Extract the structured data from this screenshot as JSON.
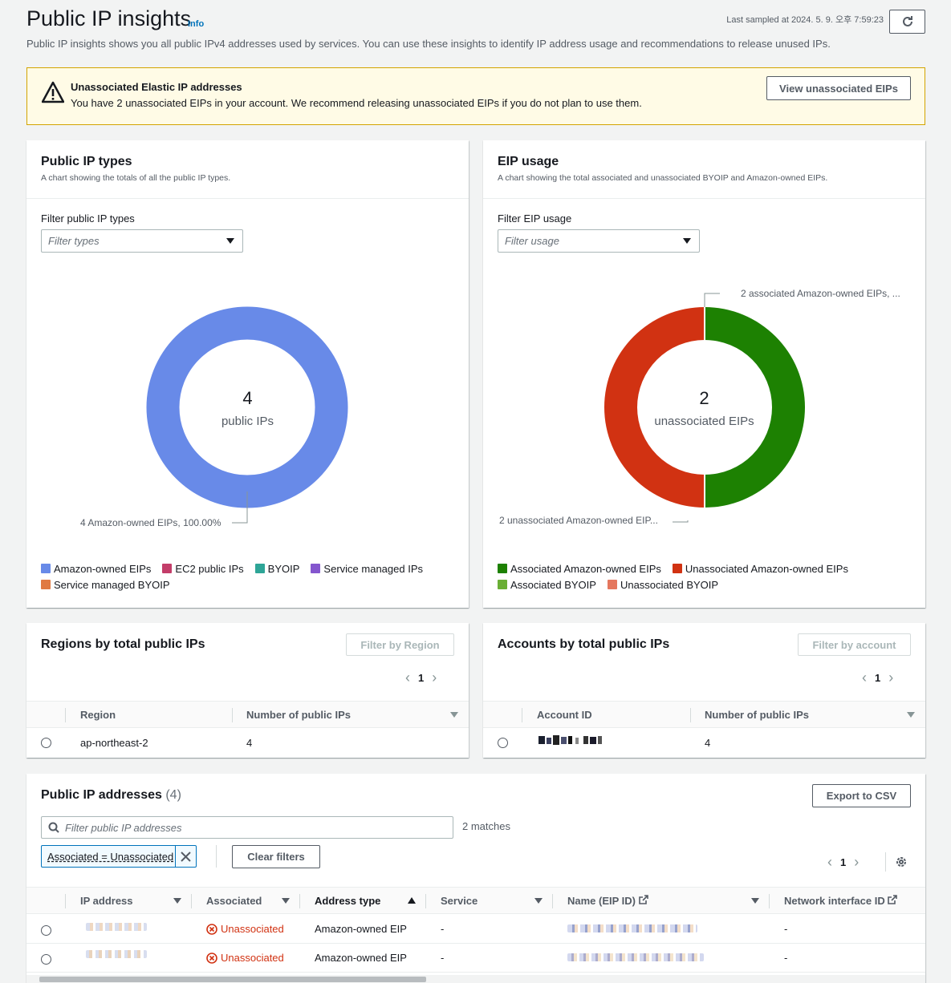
{
  "header": {
    "title": "Public IP insights",
    "info": "Info",
    "last_sampled": "Last sampled at 2024. 5. 9. 오후 7:59:23",
    "description": "Public IP insights shows you all public IPv4 addresses used by services. You can use these insights to identify IP address usage and recommendations to release unused IPs."
  },
  "alert": {
    "title": "Unassociated Elastic IP addresses",
    "text": "You have 2 unassociated EIPs in your account. We recommend releasing unassociated EIPs if you do not plan to use them.",
    "button": "View unassociated EIPs"
  },
  "ip_types": {
    "title": "Public IP types",
    "subtitle": "A chart showing the totals of all the public IP types.",
    "filter_label": "Filter public IP types",
    "filter_placeholder": "Filter types",
    "center_value": "4",
    "center_label": "public IPs",
    "slice_label": "4 Amazon-owned EIPs, 100.00%",
    "legend": [
      {
        "label": "Amazon-owned EIPs",
        "color": "#688ae8"
      },
      {
        "label": "EC2 public IPs",
        "color": "#c33d69"
      },
      {
        "label": "BYOIP",
        "color": "#2ea597"
      },
      {
        "label": "Service managed IPs",
        "color": "#8456ce"
      },
      {
        "label": "Service managed BYOIP",
        "color": "#e07941"
      }
    ]
  },
  "eip_usage": {
    "title": "EIP usage",
    "subtitle": "A chart showing the total associated and unassociated BYOIP and Amazon-owned EIPs.",
    "filter_label": "Filter EIP usage",
    "filter_placeholder": "Filter usage",
    "center_value": "2",
    "center_label": "unassociated EIPs",
    "label_top": "2 associated Amazon-owned EIPs, ...",
    "label_bottom": "2 unassociated Amazon-owned EIP...",
    "legend": [
      {
        "label": "Associated Amazon-owned EIPs",
        "color": "#1d8102"
      },
      {
        "label": "Unassociated Amazon-owned EIPs",
        "color": "#d13212"
      },
      {
        "label": "Associated BYOIP",
        "color": "#6aaf35"
      },
      {
        "label": "Unassociated BYOIP",
        "color": "#e5775e"
      }
    ]
  },
  "chart_data": [
    {
      "type": "pie",
      "categories": [
        "Amazon-owned EIPs",
        "EC2 public IPs",
        "BYOIP",
        "Service managed IPs",
        "Service managed BYOIP"
      ],
      "values": [
        4,
        0,
        0,
        0,
        0
      ]
    },
    {
      "type": "pie",
      "categories": [
        "Associated Amazon-owned EIPs",
        "Unassociated Amazon-owned EIPs",
        "Associated BYOIP",
        "Unassociated BYOIP"
      ],
      "values": [
        2,
        2,
        0,
        0
      ]
    }
  ],
  "regions": {
    "title": "Regions by total public IPs",
    "filter_button": "Filter by Region",
    "page": "1",
    "col1": "Region",
    "col2": "Number of public IPs",
    "rows": [
      {
        "region": "ap-northeast-2",
        "count": "4"
      }
    ]
  },
  "accounts": {
    "title": "Accounts by total public IPs",
    "filter_button": "Filter by account",
    "page": "1",
    "col1": "Account ID",
    "col2": "Number of public IPs",
    "rows": [
      {
        "count": "4"
      }
    ]
  },
  "addresses": {
    "title": "Public IP addresses",
    "count": "(4)",
    "export": "Export to CSV",
    "search_placeholder": "Filter public IP addresses",
    "matches": "2 matches",
    "token": "Associated = Unassociated",
    "clear": "Clear filters",
    "page": "1",
    "columns": [
      "IP address",
      "Associated",
      "Address type",
      "Service",
      "Name (EIP ID)",
      "Network interface ID"
    ],
    "rows": [
      {
        "associated": "Unassociated",
        "type": "Amazon-owned EIP",
        "service": "-",
        "eni": "-"
      },
      {
        "associated": "Unassociated",
        "type": "Amazon-owned EIP",
        "service": "-",
        "eni": "-"
      }
    ]
  }
}
